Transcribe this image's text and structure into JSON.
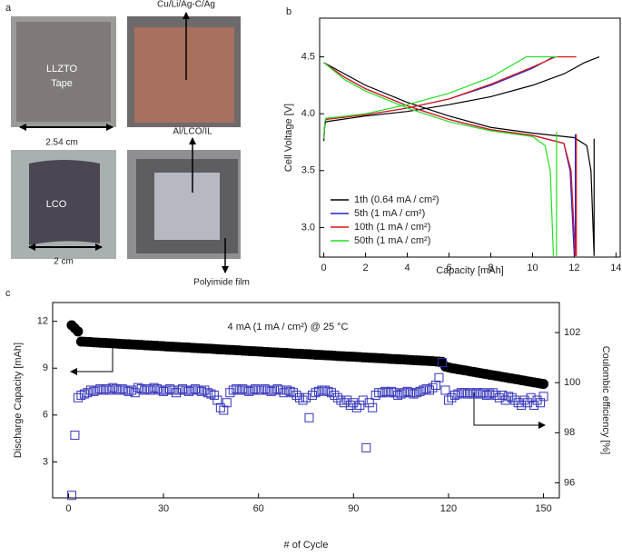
{
  "panel_a": {
    "label": "a",
    "top_right_caption": "Cu/Li/Ag-C/Ag",
    "tape_line1": "LLZTO",
    "tape_line2": "Tape",
    "tape_width": "2.54 cm",
    "bottom_right_caption": "Al/LCO/IL",
    "cathode_label": "LCO",
    "cathode_width": "2 cm",
    "film_caption": "Polyimide film"
  },
  "chart_data": [
    {
      "type": "line",
      "panel_label": "b",
      "xlabel": "Capacity [mAh]",
      "ylabel": "Cell Voltage [V]",
      "xlim": [
        -0.2,
        14.2
      ],
      "xticks": [
        0,
        2,
        4,
        6,
        8,
        10,
        12,
        14
      ],
      "ylim": [
        2.74,
        4.84
      ],
      "yticks": [
        {
          "value": 3,
          "label": "3.0"
        },
        3.5,
        {
          "value": 4,
          "label": "4.0"
        },
        4.5
      ],
      "legend": "lower left",
      "series": [
        {
          "name": "1th (0.64 mA / cm²)",
          "color": "#000000",
          "x": [
            0,
            0.05,
            0.1,
            2,
            4,
            6,
            8,
            10,
            11.5,
            12.5,
            13.2,
            null,
            0,
            1,
            2,
            4,
            6,
            8,
            10,
            12,
            12.6,
            12.8,
            12.95,
            null,
            12.95,
            12.95
          ],
          "values": [
            3.76,
            3.9,
            3.93,
            3.98,
            4.02,
            4.08,
            4.15,
            4.25,
            4.35,
            4.45,
            4.5,
            null,
            4.45,
            4.35,
            4.25,
            4.1,
            3.98,
            3.88,
            3.83,
            3.79,
            3.72,
            3.5,
            2.75,
            null,
            3.78,
            2.75
          ]
        },
        {
          "name": "5th (1 mA / cm²)",
          "color": "#2222cc",
          "x": [
            0,
            0.05,
            0.1,
            2,
            4,
            6,
            8,
            10,
            11,
            12,
            null,
            0,
            1,
            2,
            4,
            6,
            8,
            10,
            11.5,
            11.8,
            12,
            null,
            12.05,
            12.05
          ],
          "values": [
            3.78,
            3.92,
            3.95,
            3.99,
            4.05,
            4.13,
            4.25,
            4.4,
            4.5,
            4.5,
            null,
            4.45,
            4.32,
            4.22,
            4.07,
            3.95,
            3.86,
            3.81,
            3.74,
            3.5,
            2.75,
            null,
            3.82,
            2.75
          ]
        },
        {
          "name": "10th (1 mA / cm²)",
          "color": "#e01010",
          "x": [
            0,
            0.05,
            0.1,
            2,
            4,
            6,
            8,
            10,
            11.1,
            12.1,
            null,
            0,
            1,
            2,
            4,
            6,
            8,
            10,
            11.5,
            11.85,
            12.05,
            null,
            12.1,
            12.1
          ],
          "values": [
            3.78,
            3.92,
            3.95,
            3.99,
            4.05,
            4.13,
            4.26,
            4.41,
            4.5,
            4.5,
            null,
            4.45,
            4.32,
            4.22,
            4.07,
            3.95,
            3.86,
            3.81,
            3.74,
            3.5,
            2.75,
            null,
            3.82,
            2.75
          ]
        },
        {
          "name": "50th (1 mA / cm²)",
          "color": "#22dd22",
          "x": [
            0,
            0.05,
            0.1,
            2,
            4,
            6,
            8,
            9.7,
            11.2,
            null,
            0,
            1,
            2,
            4,
            6,
            8,
            10,
            10.6,
            10.85,
            11,
            null,
            11.15,
            11.15
          ],
          "values": [
            3.78,
            3.93,
            3.96,
            4.0,
            4.08,
            4.18,
            4.32,
            4.5,
            4.5,
            null,
            4.45,
            4.3,
            4.2,
            4.05,
            3.93,
            3.85,
            3.8,
            3.72,
            3.5,
            2.75,
            null,
            3.84,
            2.75
          ]
        }
      ]
    },
    {
      "type": "scatter",
      "panel_label": "c",
      "annotation": "4 mA (1 mA / cm²) @ 25 °C",
      "xlabel": "# of Cycle",
      "ylabel": "Discharge Capacity [mAh]",
      "y2label": "Coulombic efficiency [%]",
      "xlim": [
        -5,
        155
      ],
      "xticks": [
        0,
        30,
        60,
        90,
        120,
        150
      ],
      "ylim": [
        0.7,
        13.2
      ],
      "yticks": [
        3,
        6,
        9,
        12
      ],
      "y2lim": [
        95.4,
        103.2
      ],
      "y2ticks": [
        96,
        98,
        100,
        102
      ],
      "x": [
        1,
        2,
        3,
        4,
        5,
        6,
        7,
        8,
        9,
        10,
        11,
        12,
        13,
        14,
        15,
        16,
        17,
        18,
        19,
        20,
        21,
        22,
        23,
        24,
        25,
        26,
        27,
        28,
        29,
        30,
        31,
        32,
        33,
        34,
        35,
        36,
        37,
        38,
        39,
        40,
        41,
        42,
        43,
        44,
        45,
        46,
        47,
        48,
        49,
        50,
        51,
        52,
        53,
        54,
        55,
        56,
        57,
        58,
        59,
        60,
        61,
        62,
        63,
        64,
        65,
        66,
        67,
        68,
        69,
        70,
        71,
        72,
        73,
        74,
        75,
        76,
        77,
        78,
        79,
        80,
        81,
        82,
        83,
        84,
        85,
        86,
        87,
        88,
        89,
        90,
        91,
        92,
        93,
        94,
        95,
        96,
        97,
        98,
        99,
        100,
        101,
        102,
        103,
        104,
        105,
        106,
        107,
        108,
        109,
        110,
        111,
        112,
        113,
        114,
        115,
        116,
        117,
        118,
        119,
        120,
        121,
        122,
        123,
        124,
        125,
        126,
        127,
        128,
        129,
        130,
        131,
        132,
        133,
        134,
        135,
        136,
        137,
        138,
        139,
        140,
        141,
        142,
        143,
        144,
        145,
        146,
        147,
        148,
        149,
        150
      ],
      "series": [
        {
          "color": "#000000",
          "marker": "circle",
          "values": [
            11.75,
            11.55,
            11.35,
            10.7,
            10.69,
            10.68,
            10.67,
            10.65,
            10.64,
            10.63,
            10.62,
            10.61,
            10.6,
            10.59,
            10.58,
            10.56,
            10.55,
            10.54,
            10.53,
            10.52,
            10.51,
            10.5,
            10.49,
            10.47,
            10.46,
            10.45,
            10.44,
            10.43,
            10.42,
            10.41,
            10.39,
            10.38,
            10.37,
            10.36,
            10.35,
            10.34,
            10.33,
            10.32,
            10.3,
            10.29,
            10.28,
            10.27,
            10.26,
            10.25,
            10.24,
            10.23,
            10.21,
            10.2,
            10.19,
            10.18,
            10.17,
            10.16,
            10.15,
            10.14,
            10.12,
            10.11,
            10.1,
            10.09,
            10.08,
            10.07,
            10.06,
            10.04,
            10.03,
            10.02,
            10.01,
            10.0,
            9.99,
            9.98,
            9.97,
            9.95,
            9.94,
            9.93,
            9.92,
            9.91,
            9.9,
            9.89,
            9.88,
            9.86,
            9.85,
            9.84,
            9.83,
            9.82,
            9.81,
            9.8,
            9.78,
            9.77,
            9.76,
            9.75,
            9.74,
            9.73,
            9.72,
            9.71,
            9.69,
            9.68,
            9.67,
            9.66,
            9.65,
            9.64,
            9.63,
            9.62,
            9.6,
            9.59,
            9.58,
            9.57,
            9.56,
            9.55,
            9.54,
            9.52,
            9.51,
            9.5,
            9.49,
            9.48,
            9.47,
            9.46,
            9.45,
            9.43,
            9.42,
            9.41,
            9.1,
            9.05,
            9.0,
            8.97,
            8.93,
            8.9,
            8.86,
            8.83,
            8.79,
            8.76,
            8.72,
            8.69,
            8.65,
            8.62,
            8.58,
            8.55,
            8.51,
            8.48,
            8.44,
            8.41,
            8.37,
            8.34,
            8.3,
            8.27,
            8.23,
            8.2,
            8.16,
            8.13,
            8.09,
            8.06,
            8.02,
            7.99
          ]
        },
        {
          "color": "#3333bb",
          "marker": "square-open",
          "axis": "y2",
          "values": [
            95.5,
            97.9,
            99.4,
            99.5,
            99.55,
            99.6,
            99.7,
            99.65,
            99.7,
            99.75,
            99.7,
            99.75,
            99.7,
            99.8,
            99.75,
            99.7,
            99.75,
            99.7,
            99.65,
            99.7,
            99.6,
            99.8,
            99.75,
            99.7,
            99.75,
            99.7,
            99.8,
            99.75,
            99.7,
            99.65,
            99.7,
            99.75,
            99.7,
            99.6,
            99.7,
            99.75,
            99.7,
            99.65,
            99.7,
            99.75,
            99.7,
            99.65,
            99.7,
            99.6,
            99.55,
            99.5,
            99.3,
            99.0,
            98.9,
            99.2,
            99.6,
            99.7,
            99.75,
            99.7,
            99.75,
            99.7,
            99.65,
            99.7,
            99.75,
            99.7,
            99.7,
            99.75,
            99.7,
            99.65,
            99.7,
            99.75,
            99.7,
            99.6,
            99.7,
            99.65,
            99.6,
            99.5,
            99.4,
            99.3,
            99.4,
            98.6,
            99.5,
            99.6,
            99.65,
            99.7,
            99.7,
            99.65,
            99.6,
            99.5,
            99.4,
            99.3,
            99.2,
            99.3,
            99.1,
            99.2,
            99.0,
            99.1,
            99.3,
            97.4,
            99.2,
            99.0,
            99.5,
            99.6,
            99.6,
            99.65,
            99.6,
            99.65,
            99.6,
            99.5,
            99.55,
            99.6,
            99.65,
            99.6,
            99.55,
            99.6,
            99.65,
            99.7,
            99.75,
            99.7,
            99.8,
            99.9,
            100.2,
            100.8,
            99.7,
            99.3,
            99.4,
            99.5,
            99.55,
            99.6,
            99.6,
            99.55,
            99.6,
            99.55,
            99.6,
            99.55,
            99.6,
            99.5,
            99.55,
            99.6,
            99.5,
            99.4,
            99.5,
            99.3,
            99.45,
            99.4,
            99.3,
            99.2,
            99.1,
            99.3,
            99.2,
            99.4,
            99.1,
            99.3,
            99.2,
            99.45
          ]
        }
      ]
    }
  ]
}
